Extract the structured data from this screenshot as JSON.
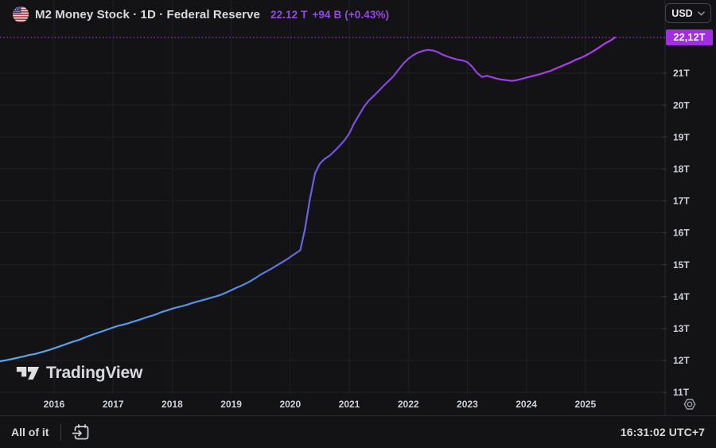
{
  "header": {
    "title": "M2 Money Stock · 1D · Federal Reserve",
    "price": "22.12 T",
    "change": "+94 B (+0.43%)"
  },
  "currency_button": {
    "label": "USD"
  },
  "logo": {
    "text": "TradingView"
  },
  "footer": {
    "range_label": "All of it",
    "timestamp": "16:31:02 UTC+7"
  },
  "colors": {
    "background": "#131316",
    "grid": "#1e2024",
    "axis_text": "#ced2d9",
    "quote_accent": "#9547e2",
    "price_line": "#a32ce4",
    "price_label_bg": "#a32ce4"
  },
  "chart_data": {
    "type": "line",
    "title": "M2 Money Stock",
    "ylabel": "USD (trillions)",
    "xlim": [
      2015.08,
      2026.35
    ],
    "ylim": [
      10.83,
      12.18
    ],
    "grid": true,
    "current": {
      "value": 22.12,
      "label": "22,12T"
    },
    "x_ticks": [
      {
        "value": 2016,
        "label": "2016"
      },
      {
        "value": 2017,
        "label": "2017"
      },
      {
        "value": 2018,
        "label": "2018"
      },
      {
        "value": 2019,
        "label": "2019"
      },
      {
        "value": 2020,
        "label": "2020"
      },
      {
        "value": 2021,
        "label": "2021"
      },
      {
        "value": 2022,
        "label": "2022"
      },
      {
        "value": 2023,
        "label": "2023"
      },
      {
        "value": 2024,
        "label": "2024"
      },
      {
        "value": 2025,
        "label": "2025"
      }
    ],
    "y_ticks": [
      {
        "value": 21,
        "label": "21T"
      },
      {
        "value": 20,
        "label": "20T"
      },
      {
        "value": 19,
        "label": "19T"
      },
      {
        "value": 18,
        "label": "18T"
      },
      {
        "value": 17,
        "label": "17T"
      },
      {
        "value": 16,
        "label": "16T"
      },
      {
        "value": 15,
        "label": "15T"
      },
      {
        "value": 14,
        "label": "14T"
      },
      {
        "value": 13,
        "label": "13T"
      },
      {
        "value": 12,
        "label": "12T"
      },
      {
        "value": 11,
        "label": "11T"
      }
    ],
    "line_gradient": [
      {
        "offset": 0,
        "color": "#5aa7ea"
      },
      {
        "offset": 0.37,
        "color": "#5490e3"
      },
      {
        "offset": 0.47,
        "color": "#5f6ce0"
      },
      {
        "offset": 0.54,
        "color": "#7454dd"
      },
      {
        "offset": 0.63,
        "color": "#8a46da"
      },
      {
        "offset": 0.8,
        "color": "#9d3ce4"
      },
      {
        "offset": 1,
        "color": "#b53bf0"
      }
    ],
    "series": [
      {
        "name": "M2 Money Stock",
        "points": [
          [
            2015.08,
            11.97
          ],
          [
            2015.17,
            12.0
          ],
          [
            2015.25,
            12.03
          ],
          [
            2015.33,
            12.06
          ],
          [
            2015.42,
            12.1
          ],
          [
            2015.5,
            12.13
          ],
          [
            2015.58,
            12.17
          ],
          [
            2015.67,
            12.2
          ],
          [
            2015.75,
            12.24
          ],
          [
            2015.83,
            12.28
          ],
          [
            2015.92,
            12.33
          ],
          [
            2016.0,
            12.38
          ],
          [
            2016.08,
            12.43
          ],
          [
            2016.17,
            12.49
          ],
          [
            2016.25,
            12.54
          ],
          [
            2016.33,
            12.59
          ],
          [
            2016.42,
            12.64
          ],
          [
            2016.5,
            12.7
          ],
          [
            2016.58,
            12.76
          ],
          [
            2016.67,
            12.82
          ],
          [
            2016.75,
            12.87
          ],
          [
            2016.83,
            12.92
          ],
          [
            2016.92,
            12.98
          ],
          [
            2017.0,
            13.03
          ],
          [
            2017.08,
            13.08
          ],
          [
            2017.17,
            13.12
          ],
          [
            2017.25,
            13.16
          ],
          [
            2017.33,
            13.21
          ],
          [
            2017.42,
            13.26
          ],
          [
            2017.5,
            13.31
          ],
          [
            2017.58,
            13.36
          ],
          [
            2017.67,
            13.41
          ],
          [
            2017.75,
            13.46
          ],
          [
            2017.83,
            13.52
          ],
          [
            2017.92,
            13.57
          ],
          [
            2018.0,
            13.62
          ],
          [
            2018.08,
            13.66
          ],
          [
            2018.17,
            13.7
          ],
          [
            2018.25,
            13.74
          ],
          [
            2018.33,
            13.79
          ],
          [
            2018.42,
            13.84
          ],
          [
            2018.5,
            13.88
          ],
          [
            2018.58,
            13.92
          ],
          [
            2018.67,
            13.97
          ],
          [
            2018.75,
            14.01
          ],
          [
            2018.83,
            14.06
          ],
          [
            2018.92,
            14.13
          ],
          [
            2019.0,
            14.2
          ],
          [
            2019.08,
            14.27
          ],
          [
            2019.17,
            14.34
          ],
          [
            2019.25,
            14.41
          ],
          [
            2019.33,
            14.49
          ],
          [
            2019.42,
            14.59
          ],
          [
            2019.5,
            14.69
          ],
          [
            2019.58,
            14.77
          ],
          [
            2019.67,
            14.86
          ],
          [
            2019.75,
            14.95
          ],
          [
            2019.83,
            15.04
          ],
          [
            2019.92,
            15.14
          ],
          [
            2020.0,
            15.24
          ],
          [
            2020.08,
            15.34
          ],
          [
            2020.17,
            15.45
          ],
          [
            2020.25,
            16.12
          ],
          [
            2020.33,
            17.02
          ],
          [
            2020.42,
            17.86
          ],
          [
            2020.5,
            18.16
          ],
          [
            2020.58,
            18.31
          ],
          [
            2020.67,
            18.42
          ],
          [
            2020.75,
            18.56
          ],
          [
            2020.83,
            18.71
          ],
          [
            2020.92,
            18.9
          ],
          [
            2021.0,
            19.11
          ],
          [
            2021.08,
            19.42
          ],
          [
            2021.17,
            19.7
          ],
          [
            2021.25,
            19.95
          ],
          [
            2021.33,
            20.14
          ],
          [
            2021.42,
            20.3
          ],
          [
            2021.5,
            20.45
          ],
          [
            2021.58,
            20.6
          ],
          [
            2021.67,
            20.76
          ],
          [
            2021.75,
            20.91
          ],
          [
            2021.83,
            21.1
          ],
          [
            2021.92,
            21.31
          ],
          [
            2022.0,
            21.45
          ],
          [
            2022.08,
            21.56
          ],
          [
            2022.17,
            21.65
          ],
          [
            2022.25,
            21.7
          ],
          [
            2022.33,
            21.73
          ],
          [
            2022.42,
            21.71
          ],
          [
            2022.5,
            21.66
          ],
          [
            2022.58,
            21.58
          ],
          [
            2022.67,
            21.52
          ],
          [
            2022.75,
            21.47
          ],
          [
            2022.83,
            21.43
          ],
          [
            2022.92,
            21.4
          ],
          [
            2023.0,
            21.35
          ],
          [
            2023.08,
            21.21
          ],
          [
            2023.17,
            21.0
          ],
          [
            2023.25,
            20.88
          ],
          [
            2023.33,
            20.92
          ],
          [
            2023.42,
            20.87
          ],
          [
            2023.5,
            20.83
          ],
          [
            2023.58,
            20.8
          ],
          [
            2023.67,
            20.78
          ],
          [
            2023.75,
            20.76
          ],
          [
            2023.83,
            20.78
          ],
          [
            2023.92,
            20.82
          ],
          [
            2024.0,
            20.86
          ],
          [
            2024.08,
            20.9
          ],
          [
            2024.17,
            20.94
          ],
          [
            2024.25,
            20.98
          ],
          [
            2024.33,
            21.03
          ],
          [
            2024.42,
            21.08
          ],
          [
            2024.5,
            21.15
          ],
          [
            2024.58,
            21.21
          ],
          [
            2024.67,
            21.28
          ],
          [
            2024.75,
            21.34
          ],
          [
            2024.83,
            21.42
          ],
          [
            2024.92,
            21.48
          ],
          [
            2025.0,
            21.55
          ],
          [
            2025.08,
            21.63
          ],
          [
            2025.17,
            21.73
          ],
          [
            2025.25,
            21.83
          ],
          [
            2025.33,
            21.93
          ],
          [
            2025.42,
            22.02
          ],
          [
            2025.5,
            22.12
          ]
        ]
      }
    ]
  }
}
